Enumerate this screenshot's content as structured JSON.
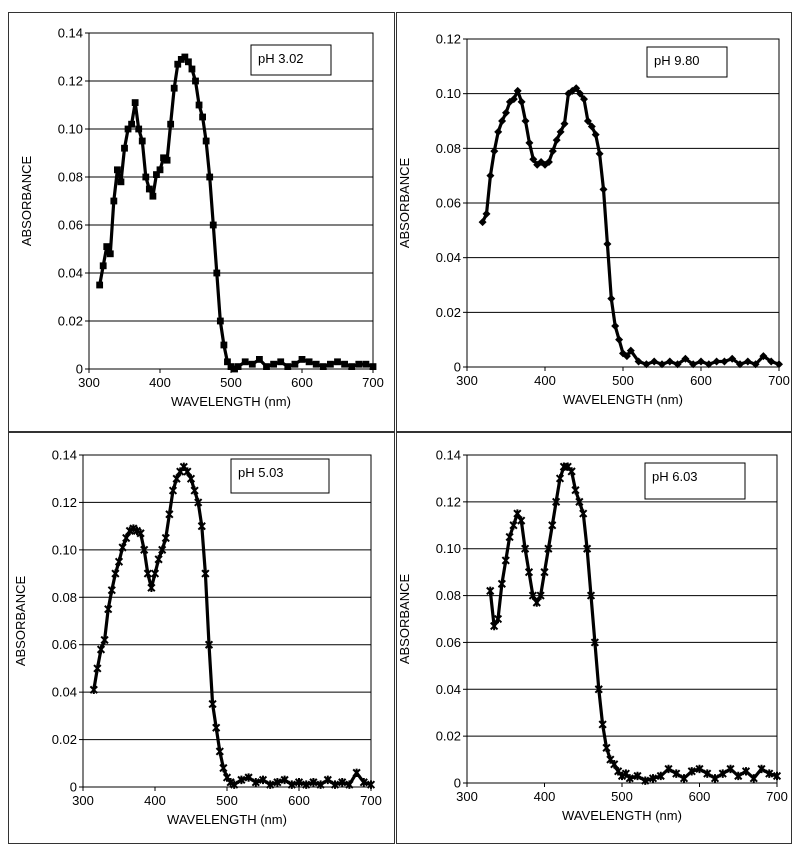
{
  "chart_data": [
    {
      "type": "line",
      "legend": "pH 3.02",
      "xlabel": "WAVELENGTH (nm)",
      "ylabel": "ABSORBANCE",
      "xlim": [
        300,
        700
      ],
      "ylim": [
        0,
        0.14
      ],
      "xticks": [
        300,
        400,
        500,
        600,
        700
      ],
      "yticks": [
        0,
        0.02,
        0.04,
        0.06,
        0.08,
        0.1,
        0.12,
        0.14
      ],
      "ytick_labels": [
        "0",
        "0.02",
        "0.04",
        "0.06",
        "0.08",
        "0.10",
        "0.12",
        "0.14"
      ],
      "grid": "horizontal",
      "marker": "square",
      "x": [
        315,
        320,
        325,
        330,
        335,
        340,
        345,
        350,
        355,
        360,
        365,
        370,
        375,
        380,
        385,
        390,
        395,
        400,
        405,
        410,
        415,
        420,
        425,
        430,
        435,
        440,
        445,
        450,
        455,
        460,
        465,
        470,
        475,
        480,
        485,
        490,
        495,
        500,
        505,
        510,
        520,
        530,
        540,
        550,
        560,
        570,
        580,
        590,
        600,
        610,
        620,
        630,
        640,
        650,
        660,
        670,
        680,
        690,
        700
      ],
      "y": [
        0.035,
        0.043,
        0.051,
        0.048,
        0.07,
        0.083,
        0.078,
        0.092,
        0.1,
        0.102,
        0.111,
        0.1,
        0.095,
        0.08,
        0.075,
        0.072,
        0.081,
        0.083,
        0.088,
        0.087,
        0.102,
        0.117,
        0.127,
        0.129,
        0.13,
        0.128,
        0.125,
        0.12,
        0.11,
        0.105,
        0.095,
        0.08,
        0.06,
        0.04,
        0.02,
        0.01,
        0.003,
        0.001,
        0,
        0.001,
        0.003,
        0.002,
        0.004,
        0.001,
        0.002,
        0.003,
        0.001,
        0.002,
        0.004,
        0.003,
        0.002,
        0.001,
        0.002,
        0.003,
        0.002,
        0.001,
        0.002,
        0.002,
        0.001
      ]
    },
    {
      "type": "line",
      "legend": "pH 9.80",
      "xlabel": "WAVELENGTH (nm)",
      "ylabel": "ABSORBANCE",
      "xlim": [
        300,
        700
      ],
      "ylim": [
        0,
        0.12
      ],
      "xticks": [
        300,
        400,
        500,
        600,
        700
      ],
      "yticks": [
        0,
        0.02,
        0.04,
        0.06,
        0.08,
        0.1,
        0.12
      ],
      "ytick_labels": [
        "0",
        "0.02",
        "0.04",
        "0.06",
        "0.08",
        "0.10",
        "0.12"
      ],
      "grid": "horizontal",
      "marker": "diamond",
      "x": [
        320,
        325,
        330,
        335,
        340,
        345,
        350,
        355,
        360,
        365,
        370,
        375,
        380,
        385,
        390,
        395,
        400,
        405,
        410,
        415,
        420,
        425,
        430,
        435,
        440,
        445,
        450,
        455,
        460,
        465,
        470,
        475,
        480,
        485,
        490,
        495,
        500,
        505,
        510,
        520,
        530,
        540,
        550,
        560,
        570,
        580,
        590,
        600,
        610,
        620,
        630,
        640,
        650,
        660,
        670,
        680,
        690,
        700
      ],
      "y": [
        0.053,
        0.056,
        0.07,
        0.079,
        0.086,
        0.09,
        0.093,
        0.097,
        0.098,
        0.101,
        0.097,
        0.09,
        0.082,
        0.076,
        0.074,
        0.075,
        0.074,
        0.075,
        0.079,
        0.083,
        0.086,
        0.089,
        0.1,
        0.101,
        0.102,
        0.1,
        0.098,
        0.09,
        0.088,
        0.085,
        0.078,
        0.065,
        0.045,
        0.025,
        0.015,
        0.01,
        0.005,
        0.004,
        0.006,
        0.002,
        0.001,
        0.002,
        0.001,
        0.002,
        0.001,
        0.003,
        0.001,
        0.002,
        0.001,
        0.002,
        0.002,
        0.003,
        0.001,
        0.002,
        0.001,
        0.004,
        0.002,
        0.001
      ]
    },
    {
      "type": "line",
      "legend": "pH 5.03",
      "xlabel": "WAVELENGTH (nm)",
      "ylabel": "ABSORBANCE",
      "xlim": [
        300,
        700
      ],
      "ylim": [
        0,
        0.14
      ],
      "xticks": [
        300,
        400,
        500,
        600,
        700
      ],
      "yticks": [
        0,
        0.02,
        0.04,
        0.06,
        0.08,
        0.1,
        0.12,
        0.14
      ],
      "ytick_labels": [
        "0",
        "0.02",
        "0.04",
        "0.06",
        "0.08",
        "0.10",
        "0.12",
        "0.14"
      ],
      "grid": "horizontal",
      "marker": "star",
      "x": [
        315,
        320,
        325,
        330,
        335,
        340,
        345,
        350,
        355,
        360,
        365,
        370,
        375,
        380,
        385,
        390,
        395,
        400,
        405,
        410,
        415,
        420,
        425,
        430,
        435,
        440,
        445,
        450,
        455,
        460,
        465,
        470,
        475,
        480,
        485,
        490,
        495,
        500,
        505,
        510,
        520,
        530,
        540,
        550,
        560,
        570,
        580,
        590,
        600,
        610,
        620,
        630,
        640,
        650,
        660,
        670,
        680,
        690,
        700
      ],
      "y": [
        0.041,
        0.05,
        0.058,
        0.062,
        0.075,
        0.083,
        0.09,
        0.095,
        0.101,
        0.105,
        0.108,
        0.109,
        0.108,
        0.107,
        0.1,
        0.09,
        0.084,
        0.09,
        0.096,
        0.1,
        0.105,
        0.115,
        0.125,
        0.13,
        0.133,
        0.135,
        0.133,
        0.13,
        0.125,
        0.12,
        0.11,
        0.09,
        0.06,
        0.035,
        0.025,
        0.015,
        0.008,
        0.004,
        0.002,
        0.001,
        0.003,
        0.004,
        0.002,
        0.003,
        0.001,
        0.002,
        0.003,
        0.001,
        0.002,
        0.001,
        0.002,
        0.001,
        0.003,
        0.001,
        0.002,
        0.001,
        0.006,
        0.002,
        0.001
      ]
    },
    {
      "type": "line",
      "legend": "pH 6.03",
      "xlabel": "WAVELENGTH (nm)",
      "ylabel": "ABSORBANCE",
      "xlim": [
        300,
        700
      ],
      "ylim": [
        0,
        0.14
      ],
      "xticks": [
        300,
        400,
        500,
        600,
        700
      ],
      "yticks": [
        0,
        0.02,
        0.04,
        0.06,
        0.08,
        0.1,
        0.12,
        0.14
      ],
      "ytick_labels": [
        "0",
        "0.02",
        "0.04",
        "0.06",
        "0.08",
        "0.10",
        "0.12",
        "0.14"
      ],
      "grid": "horizontal",
      "marker": "star",
      "x": [
        330,
        335,
        340,
        345,
        350,
        355,
        360,
        365,
        370,
        375,
        380,
        385,
        390,
        395,
        400,
        405,
        410,
        415,
        420,
        425,
        430,
        435,
        440,
        445,
        450,
        455,
        460,
        465,
        470,
        475,
        480,
        485,
        490,
        495,
        500,
        505,
        510,
        520,
        530,
        540,
        550,
        560,
        570,
        580,
        590,
        600,
        610,
        620,
        630,
        640,
        650,
        660,
        670,
        680,
        690,
        700
      ],
      "y": [
        0.082,
        0.067,
        0.07,
        0.085,
        0.095,
        0.105,
        0.11,
        0.115,
        0.112,
        0.1,
        0.09,
        0.08,
        0.077,
        0.08,
        0.09,
        0.1,
        0.11,
        0.12,
        0.13,
        0.135,
        0.135,
        0.133,
        0.125,
        0.12,
        0.115,
        0.1,
        0.08,
        0.06,
        0.04,
        0.025,
        0.015,
        0.01,
        0.008,
        0.005,
        0.003,
        0.004,
        0.002,
        0.003,
        0.001,
        0.002,
        0.003,
        0.006,
        0.004,
        0.002,
        0.005,
        0.006,
        0.004,
        0.002,
        0.004,
        0.006,
        0.003,
        0.005,
        0.002,
        0.006,
        0.004,
        0.003
      ]
    }
  ]
}
